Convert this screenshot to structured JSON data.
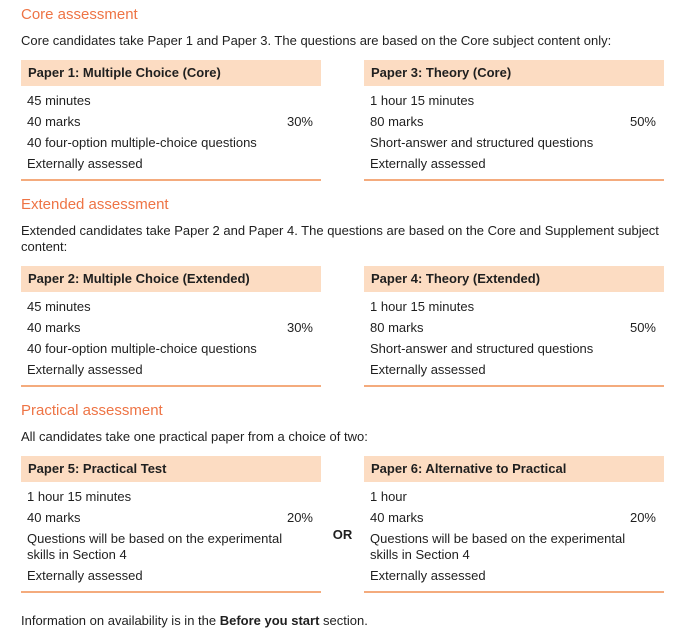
{
  "page": {
    "accent_color": "#ee7445",
    "bar_color": "#fcdcc2",
    "underline_color": "#f4ab7d"
  },
  "sections": [
    {
      "heading": "Core assessment",
      "intro": "Core candidates take Paper 1 and Paper 3. The questions are based on the Core subject content only:",
      "between": "",
      "papers": [
        {
          "title": "Paper 1: Multiple Choice (Core)",
          "rows": [
            {
              "text": "45 minutes"
            },
            {
              "text": "40 marks",
              "right": "30%"
            },
            {
              "text": "40 four-option multiple-choice questions"
            },
            {
              "text": "Externally assessed"
            }
          ]
        },
        {
          "title": "Paper 3: Theory (Core)",
          "rows": [
            {
              "text": "1 hour 15 minutes"
            },
            {
              "text": "80 marks",
              "right": "50%"
            },
            {
              "text": "Short-answer and structured questions"
            },
            {
              "text": "Externally assessed"
            }
          ]
        }
      ]
    },
    {
      "heading": "Extended assessment",
      "intro": "Extended candidates take Paper 2 and Paper 4. The questions are based on the Core and Supplement subject content:",
      "between": "",
      "papers": [
        {
          "title": "Paper 2: Multiple Choice (Extended)",
          "rows": [
            {
              "text": "45 minutes"
            },
            {
              "text": "40 marks",
              "right": "30%"
            },
            {
              "text": "40 four-option multiple-choice questions"
            },
            {
              "text": "Externally assessed"
            }
          ]
        },
        {
          "title": "Paper 4: Theory (Extended)",
          "rows": [
            {
              "text": "1 hour 15 minutes"
            },
            {
              "text": "80 marks",
              "right": "50%"
            },
            {
              "text": "Short-answer and structured questions"
            },
            {
              "text": "Externally assessed"
            }
          ]
        }
      ]
    },
    {
      "heading": "Practical assessment",
      "intro": "All candidates take one practical paper from a choice of two:",
      "between": "OR",
      "papers": [
        {
          "title": "Paper 5: Practical Test",
          "rows": [
            {
              "text": "1 hour 15 minutes"
            },
            {
              "text": "40 marks",
              "right": "20%"
            },
            {
              "text": "Questions will be based on the experimental skills in Section 4"
            },
            {
              "text": "Externally assessed"
            }
          ]
        },
        {
          "title": "Paper 6: Alternative to Practical",
          "rows": [
            {
              "text": "1 hour"
            },
            {
              "text": "40 marks",
              "right": "20%"
            },
            {
              "text": "Questions will be based on the experimental skills in Section 4"
            },
            {
              "text": "Externally assessed"
            }
          ]
        }
      ]
    }
  ],
  "footer": {
    "prefix": "Information on availability is in the ",
    "bold": "Before you start",
    "suffix": " section."
  }
}
